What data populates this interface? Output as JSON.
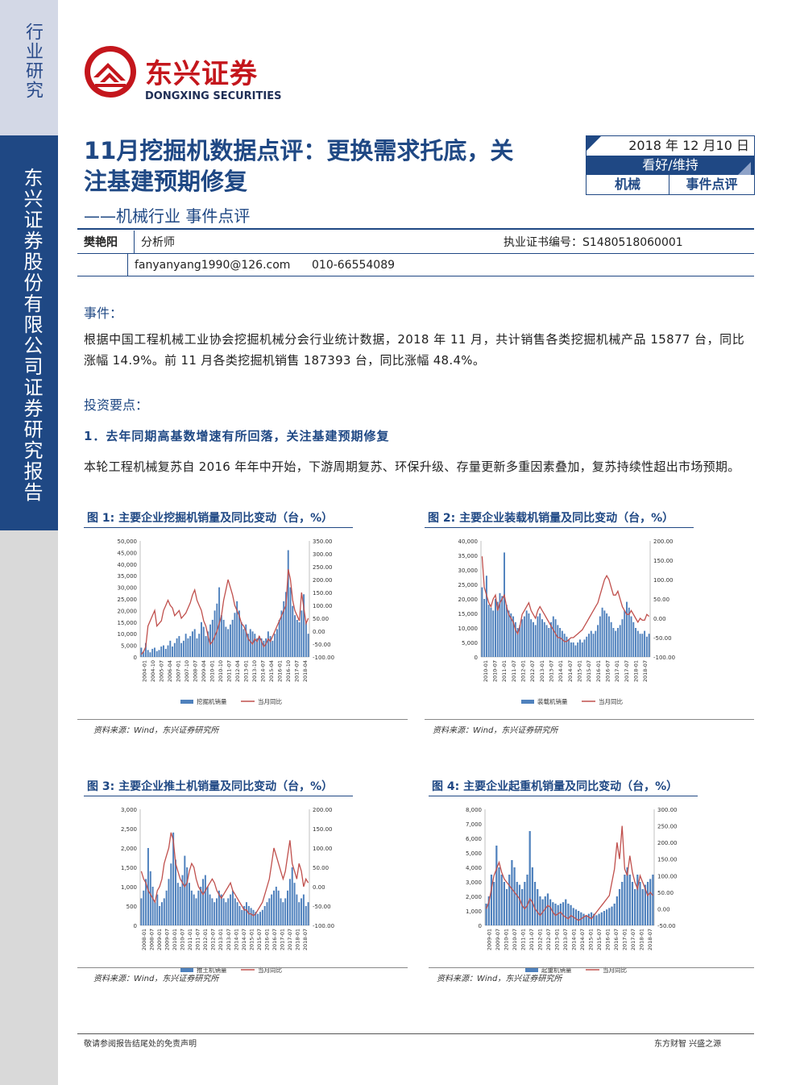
{
  "sidebar": {
    "top_label": "行业研究",
    "main_label": "东兴证券股份有限公司证券研究报告"
  },
  "brand": {
    "cn": "东兴证券",
    "en": "DONGXING SECURITIES",
    "color": "#c4161c",
    "navy": "#1f4884"
  },
  "report": {
    "title": "11月挖掘机数据点评：更换需求托底，关注基建预期修复",
    "subtitle": "——机械行业 事件点评",
    "date": "2018 年 12 月10 日",
    "rating": "看好/维持",
    "industry": "机械",
    "type": "事件点评"
  },
  "analyst": {
    "name": "樊艳阳",
    "role": "分析师",
    "cert": "执业证书编号：S1480518060001",
    "email": "fanyanyang1990@126.com",
    "phone": "010-66554089"
  },
  "event": {
    "heading": "事件：",
    "text": "根据中国工程机械工业协会挖掘机械分会行业统计数据，2018 年 11 月，共计销售各类挖掘机械产品 15877 台，同比涨幅 14.9%。前 11 月各类挖掘机销售 187393 台，同比涨幅 48.4%。"
  },
  "invest": {
    "heading": "投资要点：",
    "point1": "1．去年同期高基数增速有所回落，关注基建预期修复",
    "para1": "本轮工程机械复苏自 2016 年年中开始，下游周期复苏、环保升级、存量更新多重因素叠加，复苏持续性超出市场预期。"
  },
  "figures": [
    {
      "title": "图 1: 主要企业挖掘机销量及同比变动（台，%）",
      "source": "资料来源：Wind，东兴证券研究所"
    },
    {
      "title": "图 2: 主要企业装载机销量及同比变动（台，%）",
      "source": "资料来源：Wind，东兴证券研究所"
    },
    {
      "title": "图 3: 主要企业推土机销量及同比变动（台，%）",
      "source": "资料来源：Wind，东兴证券研究所"
    },
    {
      "title": "图 4: 主要企业起重机销量及同比变动（台，%）",
      "source": "资料来源：Wind，东兴证券研究所"
    }
  ],
  "chart_data": [
    {
      "type": "bar",
      "series_colors": [
        "#4f81bd",
        "#c0504d"
      ],
      "legend": [
        "挖掘机销量",
        "当月同比"
      ],
      "x_ticks": [
        "2004-01",
        "2004-10",
        "2005-07",
        "2006-04",
        "2007-01",
        "2007-10",
        "2008-07",
        "2009-04",
        "2010-01",
        "2010-10",
        "2011-07",
        "2012-04",
        "2013-01",
        "2013-10",
        "2014-07",
        "2015-04",
        "2016-01",
        "2016-10",
        "2017-07",
        "2018-04"
      ],
      "y_left_ticks": [
        "50,000",
        "45,000",
        "40,000",
        "35,000",
        "30,000",
        "25,000",
        "20,000",
        "15,000",
        "10,000",
        "5,000",
        "0"
      ],
      "y_left_range": [
        0,
        50000
      ],
      "y_right_ticks": [
        "350.00",
        "300.00",
        "250.00",
        "200.00",
        "150.00",
        "100.00",
        "50.00",
        "0.00",
        "-50.00",
        "-100.00"
      ],
      "y_right_range": [
        -100,
        350
      ],
      "bars": [
        4000,
        2000,
        6000,
        3000,
        2000,
        3500,
        4000,
        2500,
        3000,
        4500,
        5000,
        3500,
        5000,
        7000,
        4500,
        6000,
        8000,
        9000,
        6000,
        7000,
        10000,
        8000,
        9000,
        11000,
        12000,
        8000,
        10000,
        15000,
        13000,
        9000,
        11000,
        14000,
        16000,
        20000,
        23000,
        30000,
        18000,
        16000,
        13000,
        12000,
        14000,
        16000,
        19000,
        24000,
        20000,
        15000,
        12000,
        14000,
        10000,
        12000,
        11000,
        10000,
        8000,
        9000,
        8000,
        7000,
        8000,
        11000,
        9000,
        7000,
        10000,
        12000,
        16000,
        20000,
        24000,
        28000,
        46000,
        30000,
        22000,
        18000,
        16000,
        15000,
        20000,
        27000,
        15000,
        10000
      ],
      "line": [
        -90,
        -80,
        -60,
        20,
        40,
        60,
        80,
        20,
        30,
        40,
        80,
        100,
        120,
        100,
        90,
        60,
        70,
        80,
        50,
        60,
        70,
        90,
        110,
        140,
        160,
        120,
        100,
        80,
        40,
        20,
        -20,
        -50,
        -40,
        -20,
        0,
        30,
        60,
        120,
        160,
        200,
        170,
        140,
        100,
        80,
        60,
        30,
        20,
        0,
        -30,
        -40,
        -50,
        -30,
        -40,
        -20,
        -40,
        -60,
        -50,
        -30,
        -40,
        -20,
        0,
        20,
        40,
        60,
        80,
        100,
        240,
        200,
        120,
        80,
        60,
        40,
        150,
        90,
        30,
        50
      ]
    },
    {
      "type": "bar",
      "series_colors": [
        "#4f81bd",
        "#c0504d"
      ],
      "legend": [
        "装载机销量",
        "当月同比"
      ],
      "x_ticks": [
        "2010-01",
        "2010-07",
        "2011-01",
        "2011-07",
        "2012-01",
        "2012-07",
        "2013-01",
        "2013-07",
        "2014-01",
        "2014-07",
        "2015-01",
        "2015-07",
        "2016-01",
        "2016-07",
        "2017-01",
        "2017-07",
        "2018-01",
        "2018-07"
      ],
      "y_left_ticks": [
        "40,000",
        "35,000",
        "30,000",
        "25,000",
        "20,000",
        "15,000",
        "10,000",
        "5,000",
        "0"
      ],
      "y_left_range": [
        0,
        40000
      ],
      "y_right_ticks": [
        "200.00",
        "150.00",
        "100.00",
        "50.00",
        "0.00",
        "-50.00",
        "-100.00"
      ],
      "y_right_range": [
        -100,
        200
      ],
      "bars": [
        24000,
        20000,
        28000,
        18000,
        17000,
        16000,
        20000,
        19000,
        22000,
        21000,
        36000,
        18000,
        16000,
        15000,
        14000,
        12000,
        10000,
        11000,
        13000,
        14000,
        16000,
        15000,
        13000,
        12000,
        11000,
        14000,
        15000,
        13000,
        12000,
        11000,
        10000,
        12000,
        14000,
        13000,
        11000,
        10000,
        9000,
        8000,
        7000,
        6000,
        5000,
        5000,
        4000,
        5000,
        6000,
        5000,
        6000,
        7000,
        8000,
        9000,
        8000,
        9000,
        11000,
        14000,
        17000,
        16000,
        15000,
        14000,
        12000,
        10000,
        9000,
        10000,
        11000,
        13000,
        16000,
        19000,
        17000,
        14000,
        12000,
        10000,
        9000,
        8000,
        8000,
        9000,
        7000,
        8000
      ],
      "line": [
        160,
        80,
        60,
        40,
        30,
        50,
        60,
        20,
        40,
        50,
        60,
        30,
        10,
        0,
        -10,
        -30,
        -40,
        -20,
        10,
        20,
        30,
        40,
        20,
        10,
        0,
        20,
        30,
        20,
        10,
        0,
        -10,
        -20,
        -30,
        -40,
        -50,
        -50,
        -55,
        -60,
        -60,
        -55,
        -50,
        -50,
        -45,
        -40,
        -35,
        -30,
        -20,
        -10,
        0,
        10,
        20,
        30,
        40,
        60,
        80,
        100,
        110,
        100,
        80,
        60,
        60,
        70,
        50,
        30,
        20,
        10,
        10,
        20,
        10,
        0,
        -10,
        0,
        -5,
        -5,
        10,
        5
      ]
    },
    {
      "type": "bar",
      "series_colors": [
        "#4f81bd",
        "#c0504d"
      ],
      "legend": [
        "推土机销量",
        "当月同比"
      ],
      "x_ticks": [
        "2008-01",
        "2008-07",
        "2009-01",
        "2009-07",
        "2010-01",
        "2010-07",
        "2011-01",
        "2011-07",
        "2012-01",
        "2012-07",
        "2013-01",
        "2013-07",
        "2014-01",
        "2014-07",
        "2015-01",
        "2015-07",
        "2016-01",
        "2016-07",
        "2017-01",
        "2017-07",
        "2018-01",
        "2018-07"
      ],
      "y_left_ticks": [
        "3,000",
        "2,500",
        "2,000",
        "1,500",
        "1,000",
        "500",
        "0"
      ],
      "y_left_range": [
        0,
        3000
      ],
      "y_right_ticks": [
        "200.00",
        "150.00",
        "100.00",
        "50.00",
        "0.00",
        "-50.00",
        "-100.00"
      ],
      "y_right_range": [
        -100,
        200
      ],
      "bars": [
        700,
        900,
        1200,
        2000,
        1400,
        1000,
        600,
        800,
        500,
        600,
        700,
        900,
        1200,
        1600,
        2400,
        1700,
        1100,
        1000,
        1300,
        1800,
        1500,
        1100,
        900,
        800,
        700,
        900,
        1000,
        1200,
        1300,
        1000,
        800,
        700,
        600,
        700,
        900,
        800,
        700,
        600,
        700,
        800,
        900,
        700,
        600,
        500,
        400,
        500,
        600,
        500,
        450,
        400,
        350,
        300,
        350,
        400,
        500,
        600,
        700,
        800,
        900,
        1000,
        900,
        700,
        600,
        700,
        900,
        1200,
        1500,
        1100,
        800,
        600,
        700,
        800,
        500,
        600
      ],
      "line": [
        40,
        20,
        10,
        -10,
        -20,
        -30,
        -40,
        -10,
        0,
        20,
        60,
        80,
        100,
        140,
        120,
        60,
        40,
        20,
        10,
        0,
        10,
        40,
        60,
        50,
        20,
        0,
        -10,
        -20,
        -10,
        0,
        10,
        20,
        10,
        -10,
        -20,
        -30,
        -20,
        -10,
        0,
        10,
        -10,
        -20,
        -30,
        -40,
        -50,
        -60,
        -60,
        -70,
        -70,
        -75,
        -70,
        -60,
        -50,
        -40,
        -20,
        0,
        20,
        60,
        100,
        80,
        60,
        40,
        20,
        40,
        80,
        120,
        60,
        40,
        20,
        60,
        40,
        0,
        20,
        10
      ]
    },
    {
      "type": "bar",
      "series_colors": [
        "#4f81bd",
        "#c0504d"
      ],
      "legend": [
        "起重机销量",
        "当月同比"
      ],
      "x_ticks": [
        "2009-01",
        "2009-07",
        "2010-01",
        "2010-07",
        "2011-01",
        "2011-07",
        "2012-01",
        "2012-07",
        "2013-01",
        "2013-07",
        "2014-01",
        "2014-07",
        "2015-01",
        "2015-07",
        "2016-01",
        "2016-07",
        "2017-01",
        "2017-07",
        "2018-01",
        "2018-07"
      ],
      "y_left_ticks": [
        "8,000",
        "7,000",
        "6,000",
        "5,000",
        "4,000",
        "3,000",
        "2,000",
        "1,000",
        "0"
      ],
      "y_left_range": [
        0,
        8000
      ],
      "y_right_ticks": [
        "300.00",
        "250.00",
        "200.00",
        "150.00",
        "100.00",
        "50.00",
        "0.00",
        "-50.00"
      ],
      "y_right_range": [
        -50,
        300
      ],
      "bars": [
        1500,
        2000,
        3500,
        3000,
        5500,
        4000,
        3500,
        3000,
        2500,
        3500,
        4500,
        4000,
        3000,
        2800,
        2500,
        3000,
        3500,
        6500,
        4000,
        3000,
        2500,
        2000,
        1800,
        2000,
        2200,
        1800,
        1600,
        1500,
        1400,
        1500,
        1600,
        1800,
        1500,
        1400,
        1200,
        1100,
        1000,
        900,
        800,
        700,
        800,
        900,
        800,
        700,
        800,
        900,
        1000,
        1100,
        1200,
        1300,
        1500,
        2000,
        2500,
        3000,
        3500,
        4000,
        3500,
        3000,
        2500,
        3500,
        3000,
        2500,
        2800,
        3000,
        3200,
        3500
      ],
      "line": [
        0,
        20,
        60,
        100,
        120,
        140,
        110,
        90,
        80,
        70,
        60,
        50,
        40,
        30,
        10,
        0,
        10,
        30,
        20,
        0,
        -10,
        -20,
        -10,
        0,
        10,
        5,
        -10,
        -20,
        -15,
        -10,
        -20,
        -25,
        -30,
        -20,
        -25,
        -30,
        -35,
        -30,
        -25,
        -20,
        -25,
        -30,
        -20,
        -10,
        0,
        10,
        20,
        30,
        40,
        80,
        120,
        200,
        150,
        250,
        120,
        100,
        160,
        110,
        80,
        60,
        100,
        80,
        60,
        40,
        50,
        40
      ]
    }
  ],
  "footer": {
    "left": "敬请参阅报告结尾处的免责声明",
    "right": "东方财智 兴盛之源"
  }
}
